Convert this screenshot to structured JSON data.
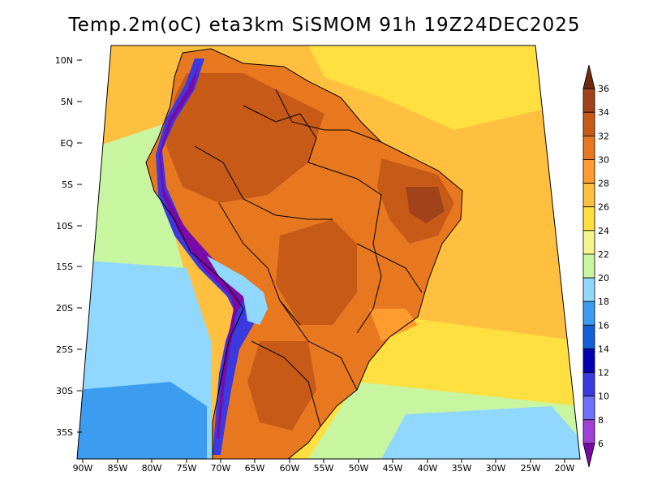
{
  "title": "Temp.2m(oC) eta3km SiSMOM 91h 19Z24DEC2025",
  "lat_labels": [
    "10N",
    "5N",
    "EQ",
    "5S",
    "10S",
    "15S",
    "20S",
    "25S",
    "30S",
    "35S"
  ],
  "lon_labels": [
    "90W",
    "85W",
    "80W",
    "75W",
    "70W",
    "65W",
    "60W",
    "55W",
    "50W",
    "45W",
    "40W",
    "35W",
    "30W",
    "25W",
    "20W"
  ],
  "colorbar": {
    "labels": [
      "6",
      "8",
      "10",
      "12",
      "14",
      "16",
      "18",
      "20",
      "22",
      "24",
      "26",
      "28",
      "30",
      "32",
      "34",
      "36"
    ],
    "colors": [
      "#7a0aa8",
      "#a040d8",
      "#7070ff",
      "#3a3ae0",
      "#0000b0",
      "#1060d8",
      "#3c9cf0",
      "#90d8ff",
      "#c8f5a0",
      "#f5f58a",
      "#ffe040",
      "#ffc040",
      "#ff9c30",
      "#e87820",
      "#c85a18",
      "#a0421a",
      "#6e2c10"
    ]
  },
  "legend": {
    "ocean_north": "#ffc040",
    "ocean_south": "#90d8ff",
    "pacific_warm": "#c8f5a0",
    "land_hot": "#c85a18",
    "land_warm": "#e87820",
    "andes_cold": "#3a3ae0"
  }
}
